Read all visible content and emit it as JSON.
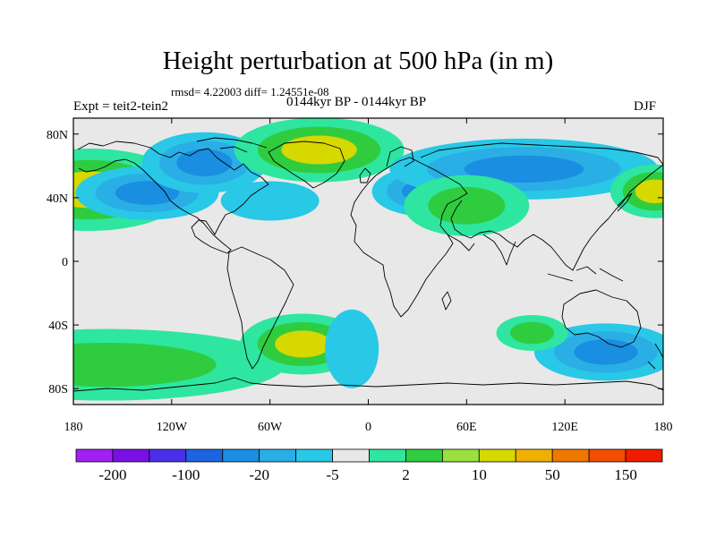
{
  "title": "Height perturbation at 500 hPa (in m)",
  "stats": "rmsd= 4.22003 diff= 1.24551e-08",
  "expt_label": "Expt = teit2-tein2",
  "period_label": "0144kyr BP - 0144kyr BP",
  "season_label": "DJF",
  "map": {
    "background_color": "#e8e8e8",
    "lat_labels": [
      "80N",
      "40N",
      "0",
      "40S",
      "80S"
    ],
    "lon_labels": [
      "180",
      "120W",
      "60W",
      "0",
      "60E",
      "120E",
      "180"
    ]
  },
  "colorbar": {
    "colors": [
      "#a020f0",
      "#7a10e6",
      "#4a30e8",
      "#1d64e0",
      "#1a8ee0",
      "#2aaee6",
      "#28c8e6",
      "#e8e8e8",
      "#2ee6a0",
      "#30cc40",
      "#9ae040",
      "#d6d800",
      "#f0b000",
      "#f07800",
      "#f04e00",
      "#f01c00"
    ],
    "labels": [
      "-200",
      "-100",
      "-20",
      "-5",
      "2",
      "10",
      "50",
      "150"
    ]
  },
  "chart_data": {
    "type": "heatmap",
    "title": "Height perturbation at 500 hPa (in m)",
    "xlabel": "",
    "ylabel": "",
    "x_range": [
      -180,
      180
    ],
    "y_range": [
      -90,
      90
    ],
    "color_levels": [
      "-200",
      "-100",
      "-20",
      "-5",
      "2",
      "10",
      "50",
      "150"
    ],
    "features": [
      {
        "lon": -170,
        "lat": 45,
        "sign": "positive",
        "peak_level": "50"
      },
      {
        "lon": -135,
        "lat": 43,
        "sign": "negative",
        "peak_level": "-20"
      },
      {
        "lon": -100,
        "lat": 62,
        "sign": "negative",
        "peak_level": "-20"
      },
      {
        "lon": -30,
        "lat": 70,
        "sign": "positive",
        "peak_level": "50"
      },
      {
        "lon": -60,
        "lat": 38,
        "sign": "negative",
        "peak_level": "-5"
      },
      {
        "lon": 35,
        "lat": 44,
        "sign": "negative",
        "peak_level": "-20"
      },
      {
        "lon": 95,
        "lat": 58,
        "sign": "negative",
        "peak_level": "-20"
      },
      {
        "lon": 60,
        "lat": 35,
        "sign": "positive",
        "peak_level": "10"
      },
      {
        "lon": 175,
        "lat": 44,
        "sign": "positive",
        "peak_level": "50"
      },
      {
        "lon": -160,
        "lat": -65,
        "sign": "positive",
        "peak_level": "10"
      },
      {
        "lon": -40,
        "lat": -52,
        "sign": "positive",
        "peak_level": "50"
      },
      {
        "lon": -10,
        "lat": -55,
        "sign": "negative",
        "peak_level": "-5"
      },
      {
        "lon": 145,
        "lat": -57,
        "sign": "negative",
        "peak_level": "-20"
      },
      {
        "lon": 100,
        "lat": -45,
        "sign": "positive",
        "peak_level": "10"
      }
    ]
  }
}
